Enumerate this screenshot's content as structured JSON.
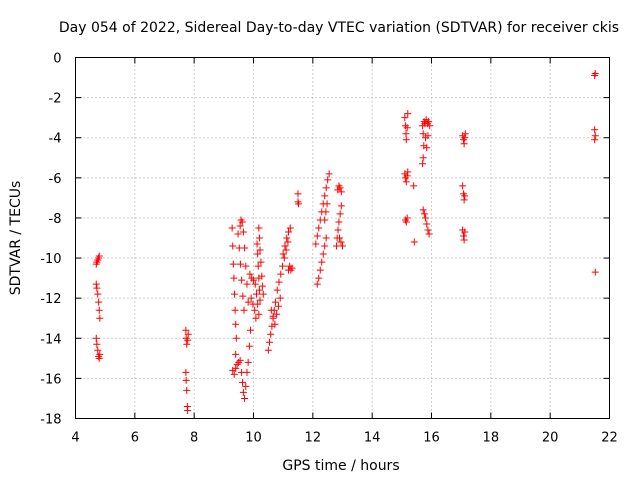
{
  "chart_data": {
    "type": "scatter",
    "title": "Day 054 of 2022, Sidereal Day-to-day VTEC variation (SDTVAR) for receiver ckis",
    "xlabel": "GPS time / hours",
    "ylabel": "SDTVAR / TECUs",
    "xlim": [
      4,
      22
    ],
    "ylim": [
      -18,
      0
    ],
    "xticks": [
      4,
      6,
      8,
      10,
      12,
      14,
      16,
      18,
      20,
      22
    ],
    "yticks": [
      0,
      -2,
      -4,
      -6,
      -8,
      -10,
      -12,
      -14,
      -16,
      -18
    ],
    "xtick_labels": [
      "4",
      "6",
      "8",
      "10",
      "12",
      "14",
      "16",
      "18",
      "20",
      "22"
    ],
    "ytick_labels": [
      "0",
      "-2",
      "-4",
      "-6",
      "-8",
      "-10",
      "-12",
      "-14",
      "-16",
      "-18"
    ],
    "grid": true,
    "marker": "+",
    "marker_color": "#ff0000",
    "series": [
      {
        "name": "SDTVAR",
        "points": [
          [
            4.7,
            -10.3
          ],
          [
            4.72,
            -10.2
          ],
          [
            4.75,
            -10.1
          ],
          [
            4.78,
            -10.0
          ],
          [
            4.8,
            -9.9
          ],
          [
            4.7,
            -11.3
          ],
          [
            4.72,
            -11.5
          ],
          [
            4.75,
            -11.8
          ],
          [
            4.78,
            -12.2
          ],
          [
            4.8,
            -12.6
          ],
          [
            4.82,
            -13.0
          ],
          [
            4.7,
            -14.0
          ],
          [
            4.72,
            -14.3
          ],
          [
            4.75,
            -14.6
          ],
          [
            4.78,
            -14.9
          ],
          [
            4.8,
            -15.0
          ],
          [
            4.82,
            -14.8
          ],
          [
            7.72,
            -13.6
          ],
          [
            7.73,
            -14.0
          ],
          [
            7.75,
            -14.3
          ],
          [
            7.78,
            -14.1
          ],
          [
            7.8,
            -13.8
          ],
          [
            7.72,
            -15.7
          ],
          [
            7.73,
            -16.1
          ],
          [
            7.75,
            -16.6
          ],
          [
            7.77,
            -17.4
          ],
          [
            7.78,
            -17.6
          ],
          [
            9.28,
            -8.5
          ],
          [
            9.3,
            -9.4
          ],
          [
            9.32,
            -10.3
          ],
          [
            9.34,
            -11.0
          ],
          [
            9.36,
            -11.8
          ],
          [
            9.38,
            -12.6
          ],
          [
            9.4,
            -13.3
          ],
          [
            9.42,
            -14.0
          ],
          [
            9.4,
            -14.8
          ],
          [
            9.3,
            -15.6
          ],
          [
            9.35,
            -15.8
          ],
          [
            9.4,
            -15.5
          ],
          [
            9.45,
            -15.3
          ],
          [
            9.5,
            -15.2
          ],
          [
            9.55,
            -15.1
          ],
          [
            9.48,
            -8.8
          ],
          [
            9.52,
            -9.5
          ],
          [
            9.56,
            -10.3
          ],
          [
            9.6,
            -11.1
          ],
          [
            9.64,
            -11.9
          ],
          [
            9.68,
            -12.6
          ],
          [
            9.55,
            -8.4
          ],
          [
            9.58,
            -8.1
          ],
          [
            9.62,
            -8.2
          ],
          [
            9.66,
            -8.7
          ],
          [
            9.7,
            -9.5
          ],
          [
            9.74,
            -10.4
          ],
          [
            9.78,
            -11.3
          ],
          [
            9.82,
            -12.2
          ],
          [
            9.6,
            -15.7
          ],
          [
            9.63,
            -16.2
          ],
          [
            9.66,
            -16.7
          ],
          [
            9.7,
            -17.0
          ],
          [
            9.74,
            -16.4
          ],
          [
            9.78,
            -15.7
          ],
          [
            9.82,
            -15.2
          ],
          [
            9.86,
            -14.4
          ],
          [
            9.9,
            -13.6
          ],
          [
            9.88,
            -10.8
          ],
          [
            9.94,
            -11.0
          ],
          [
            10.0,
            -11.1
          ],
          [
            10.06,
            -11.3
          ],
          [
            10.1,
            -11.8
          ],
          [
            10.14,
            -12.3
          ],
          [
            10.18,
            -12.8
          ],
          [
            9.92,
            -12.0
          ],
          [
            9.98,
            -12.3
          ],
          [
            10.04,
            -12.6
          ],
          [
            10.08,
            -13.0
          ],
          [
            10.12,
            -9.3
          ],
          [
            10.14,
            -9.8
          ],
          [
            10.16,
            -10.4
          ],
          [
            10.18,
            -11.0
          ],
          [
            10.2,
            -11.6
          ],
          [
            10.22,
            -12.1
          ],
          [
            10.18,
            -8.5
          ],
          [
            10.2,
            -9.0
          ],
          [
            10.22,
            -9.6
          ],
          [
            10.25,
            -10.2
          ],
          [
            10.28,
            -10.9
          ],
          [
            10.3,
            -11.4
          ],
          [
            10.33,
            -11.8
          ],
          [
            10.5,
            -14.6
          ],
          [
            10.54,
            -14.2
          ],
          [
            10.58,
            -13.8
          ],
          [
            10.62,
            -13.4
          ],
          [
            10.66,
            -13.0
          ],
          [
            10.7,
            -12.6
          ],
          [
            10.74,
            -12.2
          ],
          [
            10.6,
            -12.6
          ],
          [
            10.66,
            -12.9
          ],
          [
            10.72,
            -13.3
          ],
          [
            10.78,
            -12.8
          ],
          [
            10.84,
            -12.4
          ],
          [
            10.9,
            -12.0
          ],
          [
            10.8,
            -11.6
          ],
          [
            10.86,
            -11.2
          ],
          [
            10.92,
            -10.8
          ],
          [
            10.98,
            -10.4
          ],
          [
            11.04,
            -10.0
          ],
          [
            11.1,
            -9.6
          ],
          [
            11.16,
            -9.2
          ],
          [
            11.0,
            -9.8
          ],
          [
            11.06,
            -9.4
          ],
          [
            11.12,
            -9.0
          ],
          [
            11.18,
            -8.7
          ],
          [
            11.24,
            -8.5
          ],
          [
            11.18,
            -10.6
          ],
          [
            11.22,
            -10.4
          ],
          [
            11.26,
            -10.6
          ],
          [
            11.3,
            -10.5
          ],
          [
            11.5,
            -6.8
          ],
          [
            11.5,
            -7.2
          ],
          [
            11.52,
            -7.3
          ],
          [
            12.15,
            -11.3
          ],
          [
            12.2,
            -11.0
          ],
          [
            12.25,
            -10.6
          ],
          [
            12.3,
            -10.2
          ],
          [
            12.35,
            -9.8
          ],
          [
            12.4,
            -9.4
          ],
          [
            12.45,
            -9.0
          ],
          [
            12.1,
            -9.3
          ],
          [
            12.15,
            -8.9
          ],
          [
            12.2,
            -8.5
          ],
          [
            12.25,
            -8.1
          ],
          [
            12.3,
            -7.7
          ],
          [
            12.35,
            -7.3
          ],
          [
            12.4,
            -6.9
          ],
          [
            12.45,
            -6.5
          ],
          [
            12.5,
            -6.1
          ],
          [
            12.55,
            -5.8
          ],
          [
            12.4,
            -8.1
          ],
          [
            12.44,
            -7.7
          ],
          [
            12.48,
            -7.3
          ],
          [
            12.8,
            -9.4
          ],
          [
            12.82,
            -9.0
          ],
          [
            12.85,
            -8.6
          ],
          [
            12.88,
            -8.2
          ],
          [
            12.92,
            -7.8
          ],
          [
            12.96,
            -7.4
          ],
          [
            12.84,
            -6.6
          ],
          [
            12.88,
            -6.4
          ],
          [
            12.92,
            -6.5
          ],
          [
            12.96,
            -6.7
          ],
          [
            12.9,
            -9.0
          ],
          [
            12.95,
            -9.2
          ],
          [
            13.0,
            -9.4
          ],
          [
            15.1,
            -3.0
          ],
          [
            15.12,
            -3.4
          ],
          [
            15.14,
            -3.8
          ],
          [
            15.15,
            -4.1
          ],
          [
            15.18,
            -3.5
          ],
          [
            15.2,
            -2.8
          ],
          [
            15.1,
            -5.8
          ],
          [
            15.12,
            -6.0
          ],
          [
            15.15,
            -6.2
          ],
          [
            15.18,
            -5.9
          ],
          [
            15.2,
            -5.7
          ],
          [
            15.12,
            -8.1
          ],
          [
            15.15,
            -8.2
          ],
          [
            15.18,
            -8.0
          ],
          [
            15.4,
            -6.4
          ],
          [
            15.42,
            -9.2
          ],
          [
            15.7,
            -3.4
          ],
          [
            15.72,
            -3.8
          ],
          [
            15.74,
            -4.4
          ],
          [
            15.72,
            -5.0
          ],
          [
            15.7,
            -5.3
          ],
          [
            15.75,
            -3.2
          ],
          [
            15.78,
            -3.3
          ],
          [
            15.82,
            -3.1
          ],
          [
            15.86,
            -3.3
          ],
          [
            15.9,
            -3.2
          ],
          [
            15.94,
            -3.4
          ],
          [
            15.72,
            -7.6
          ],
          [
            15.76,
            -7.8
          ],
          [
            15.8,
            -8.0
          ],
          [
            15.84,
            -8.3
          ],
          [
            15.88,
            -8.6
          ],
          [
            15.92,
            -8.8
          ],
          [
            15.8,
            -4.0
          ],
          [
            15.84,
            -4.5
          ],
          [
            15.88,
            -3.9
          ],
          [
            17.05,
            -3.9
          ],
          [
            17.08,
            -4.1
          ],
          [
            17.1,
            -4.3
          ],
          [
            17.12,
            -4.0
          ],
          [
            17.14,
            -3.8
          ],
          [
            17.05,
            -6.4
          ],
          [
            17.08,
            -6.8
          ],
          [
            17.1,
            -7.1
          ],
          [
            17.12,
            -6.9
          ],
          [
            17.05,
            -8.6
          ],
          [
            17.08,
            -8.9
          ],
          [
            17.1,
            -9.1
          ],
          [
            17.12,
            -8.7
          ],
          [
            21.5,
            -0.9
          ],
          [
            21.52,
            -0.8
          ],
          [
            21.5,
            -3.6
          ],
          [
            21.52,
            -3.9
          ],
          [
            21.5,
            -4.1
          ],
          [
            21.52,
            -10.7
          ]
        ]
      }
    ]
  }
}
